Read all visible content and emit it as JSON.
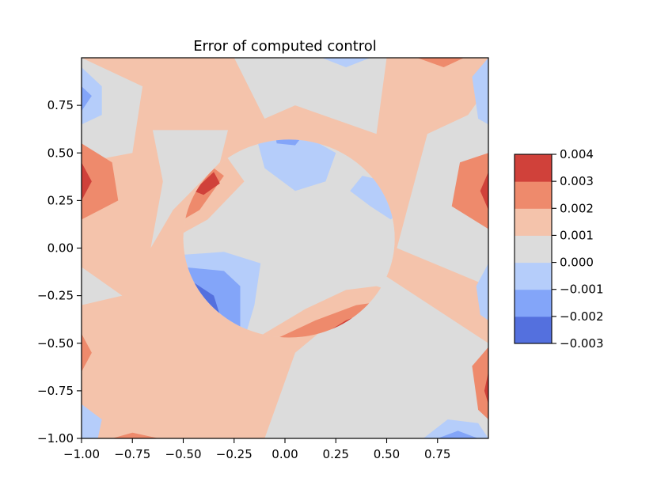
{
  "chart_data": {
    "type": "heatmap",
    "title": "Error of computed control",
    "xlabel": "",
    "ylabel": "",
    "xlim": [
      -1.0,
      1.0
    ],
    "ylim": [
      -1.0,
      1.0
    ],
    "x_ticks": [
      {
        "value": -1.0,
        "label": "−1.00"
      },
      {
        "value": -0.75,
        "label": "−0.75"
      },
      {
        "value": -0.5,
        "label": "−0.50"
      },
      {
        "value": -0.25,
        "label": "−0.25"
      },
      {
        "value": 0.0,
        "label": "0.00"
      },
      {
        "value": 0.25,
        "label": "0.25"
      },
      {
        "value": 0.5,
        "label": "0.50"
      },
      {
        "value": 0.75,
        "label": "0.75"
      }
    ],
    "y_ticks": [
      {
        "value": -1.0,
        "label": "−1.00"
      },
      {
        "value": -0.75,
        "label": "−0.75"
      },
      {
        "value": -0.5,
        "label": "−0.50"
      },
      {
        "value": -0.25,
        "label": "−0.25"
      },
      {
        "value": 0.0,
        "label": "0.00"
      },
      {
        "value": 0.25,
        "label": "0.25"
      },
      {
        "value": 0.5,
        "label": "0.50"
      },
      {
        "value": 0.75,
        "label": "0.75"
      }
    ],
    "colorbar": {
      "levels": [
        -0.003,
        -0.002,
        -0.001,
        0.0,
        0.001,
        0.002,
        0.003,
        0.004
      ],
      "tick_labels": [
        "−0.003",
        "−0.002",
        "−0.001",
        "0.000",
        "0.001",
        "0.002",
        "0.003",
        "0.004"
      ],
      "colors": [
        "#5470de",
        "#83a5f9",
        "#b5cdfa",
        "#dcdcdc",
        "#f4c3ab",
        "#ee8a6c",
        "#d0413a"
      ]
    },
    "hole": {
      "shape": "circle",
      "center": [
        0.02,
        0.05
      ],
      "radius": 0.52
    },
    "regions": [
      {
        "band": 0.0015,
        "x_range": [
          -1.0,
          1.0
        ],
        "y_range": [
          -1.0,
          1.0
        ],
        "note": "background"
      },
      {
        "band": 0.0005,
        "polygon": [
          [
            -0.65,
            0.62
          ],
          [
            -0.28,
            0.62
          ],
          [
            -0.32,
            0.45
          ],
          [
            -0.55,
            0.2
          ],
          [
            -0.66,
            0.0
          ],
          [
            -0.6,
            0.35
          ]
        ]
      },
      {
        "band": 0.0005,
        "polygon": [
          [
            -0.25,
            1.0
          ],
          [
            0.5,
            1.0
          ],
          [
            0.45,
            0.6
          ],
          [
            0.05,
            0.75
          ],
          [
            -0.1,
            0.68
          ]
        ]
      },
      {
        "band": 0.0005,
        "polygon": [
          [
            0.55,
            0.0
          ],
          [
            1.0,
            -0.2
          ],
          [
            1.0,
            0.85
          ],
          [
            0.9,
            0.7
          ],
          [
            0.7,
            0.6
          ],
          [
            0.6,
            0.2
          ]
        ]
      },
      {
        "band": 0.0005,
        "polygon": [
          [
            0.05,
            -0.55
          ],
          [
            0.5,
            -0.15
          ],
          [
            1.0,
            -0.5
          ],
          [
            1.0,
            -1.0
          ],
          [
            -0.1,
            -1.0
          ]
        ]
      },
      {
        "band": 0.0005,
        "polygon": [
          [
            -1.0,
            -0.1
          ],
          [
            -0.8,
            -0.25
          ],
          [
            -1.0,
            -0.3
          ]
        ]
      },
      {
        "band": 0.0005,
        "polygon": [
          [
            -1.0,
            1.0
          ],
          [
            -0.7,
            0.85
          ],
          [
            -0.75,
            0.5
          ],
          [
            -1.0,
            0.45
          ]
        ]
      },
      {
        "band": 0.0025,
        "polygon": [
          [
            -1.0,
            0.55
          ],
          [
            -0.85,
            0.45
          ],
          [
            -0.82,
            0.25
          ],
          [
            -1.0,
            0.15
          ]
        ]
      },
      {
        "band": 0.0035,
        "polygon": [
          [
            -1.0,
            0.45
          ],
          [
            -0.95,
            0.35
          ],
          [
            -1.0,
            0.25
          ]
        ]
      },
      {
        "band": 0.0025,
        "polygon": [
          [
            1.0,
            0.5
          ],
          [
            0.86,
            0.45
          ],
          [
            0.82,
            0.22
          ],
          [
            1.0,
            0.1
          ]
        ]
      },
      {
        "band": 0.0035,
        "polygon": [
          [
            1.0,
            0.4
          ],
          [
            0.96,
            0.3
          ],
          [
            1.0,
            0.2
          ]
        ]
      },
      {
        "band": 0.0025,
        "polygon": [
          [
            1.0,
            -0.52
          ],
          [
            0.92,
            -0.62
          ],
          [
            0.95,
            -0.85
          ],
          [
            1.0,
            -0.9
          ]
        ]
      },
      {
        "band": 0.0035,
        "polygon": [
          [
            1.0,
            -0.65
          ],
          [
            0.98,
            -0.75
          ],
          [
            1.0,
            -0.82
          ]
        ]
      },
      {
        "band": 0.0025,
        "polygon": [
          [
            -1.0,
            -0.45
          ],
          [
            -0.95,
            -0.55
          ],
          [
            -1.0,
            -0.65
          ]
        ]
      },
      {
        "band": 0.0025,
        "polygon": [
          [
            0.65,
            1.0
          ],
          [
            0.78,
            0.95
          ],
          [
            0.88,
            1.0
          ]
        ]
      },
      {
        "band": -0.0005,
        "polygon": [
          [
            -1.0,
            0.95
          ],
          [
            -0.9,
            0.85
          ],
          [
            -0.9,
            0.7
          ],
          [
            -1.0,
            0.65
          ]
        ]
      },
      {
        "band": -0.0015,
        "polygon": [
          [
            -1.0,
            0.85
          ],
          [
            -0.95,
            0.8
          ],
          [
            -1.0,
            0.72
          ]
        ]
      },
      {
        "band": -0.0005,
        "polygon": [
          [
            1.0,
            1.0
          ],
          [
            0.92,
            0.9
          ],
          [
            0.95,
            0.68
          ],
          [
            1.0,
            0.65
          ]
        ]
      },
      {
        "band": -0.0005,
        "polygon": [
          [
            1.0,
            -0.08
          ],
          [
            0.94,
            -0.2
          ],
          [
            0.96,
            -0.35
          ],
          [
            1.0,
            -0.38
          ]
        ]
      },
      {
        "band": -0.0005,
        "polygon": [
          [
            0.68,
            -1.0
          ],
          [
            0.8,
            -0.9
          ],
          [
            0.95,
            -0.92
          ],
          [
            1.0,
            -1.0
          ]
        ]
      },
      {
        "band": -0.0015,
        "polygon": [
          [
            0.75,
            -1.0
          ],
          [
            0.85,
            -0.96
          ],
          [
            0.95,
            -1.0
          ]
        ]
      },
      {
        "band": -0.0005,
        "polygon": [
          [
            -1.0,
            -0.82
          ],
          [
            -0.9,
            -0.9
          ],
          [
            -0.92,
            -1.0
          ],
          [
            -1.0,
            -1.0
          ]
        ]
      },
      {
        "band": -0.0005,
        "polygon": [
          [
            0.18,
            1.0
          ],
          [
            0.3,
            0.95
          ],
          [
            0.42,
            1.0
          ]
        ]
      },
      {
        "band": 0.0025,
        "polygon": [
          [
            -0.85,
            -1.0
          ],
          [
            -0.75,
            -0.97
          ],
          [
            -0.62,
            -1.0
          ]
        ]
      },
      {
        "band": 0.0015,
        "polygon": [
          [
            -0.72,
            0.15
          ],
          [
            -0.52,
            0.45
          ],
          [
            -0.42,
            0.52
          ],
          [
            -0.3,
            0.5
          ],
          [
            -0.2,
            0.35
          ],
          [
            -0.38,
            0.15
          ],
          [
            -0.55,
            0.05
          ],
          [
            -0.72,
            -0.05
          ]
        ],
        "clip": "hole"
      },
      {
        "band": 0.0025,
        "polygon": [
          [
            -0.62,
            0.15
          ],
          [
            -0.45,
            0.35
          ],
          [
            -0.35,
            0.42
          ],
          [
            -0.3,
            0.38
          ],
          [
            -0.42,
            0.2
          ],
          [
            -0.58,
            0.1
          ]
        ],
        "clip": "hole"
      },
      {
        "band": 0.0035,
        "polygon": [
          [
            -0.45,
            0.3
          ],
          [
            -0.35,
            0.4
          ],
          [
            -0.32,
            0.34
          ],
          [
            -0.4,
            0.28
          ]
        ],
        "clip": "hole"
      },
      {
        "band": -0.0005,
        "polygon": [
          [
            -0.7,
            -0.05
          ],
          [
            -0.3,
            -0.02
          ],
          [
            -0.12,
            -0.08
          ],
          [
            -0.15,
            -0.3
          ],
          [
            -0.2,
            -0.48
          ],
          [
            -0.3,
            -0.52
          ],
          [
            -0.6,
            -0.4
          ],
          [
            -0.7,
            -0.2
          ]
        ],
        "clip": "hole"
      },
      {
        "band": -0.0015,
        "polygon": [
          [
            -0.7,
            -0.08
          ],
          [
            -0.3,
            -0.12
          ],
          [
            -0.22,
            -0.2
          ],
          [
            -0.22,
            -0.45
          ],
          [
            -0.3,
            -0.46
          ],
          [
            -0.45,
            -0.35
          ],
          [
            -0.7,
            -0.25
          ]
        ],
        "clip": "hole"
      },
      {
        "band": -0.0025,
        "polygon": [
          [
            -0.7,
            -0.15
          ],
          [
            -0.45,
            -0.18
          ],
          [
            -0.35,
            -0.25
          ],
          [
            -0.3,
            -0.42
          ],
          [
            -0.45,
            -0.33
          ],
          [
            -0.7,
            -0.3
          ]
        ],
        "clip": "hole"
      },
      {
        "band": 0.0015,
        "polygon": [
          [
            -0.15,
            -0.48
          ],
          [
            0.1,
            -0.32
          ],
          [
            0.3,
            -0.22
          ],
          [
            0.45,
            -0.2
          ],
          [
            0.6,
            -0.25
          ],
          [
            0.5,
            -0.4
          ],
          [
            0.3,
            -0.48
          ],
          [
            0.0,
            -0.55
          ],
          [
            -0.15,
            -0.55
          ]
        ],
        "clip": "hole"
      },
      {
        "band": 0.0025,
        "polygon": [
          [
            -0.05,
            -0.48
          ],
          [
            0.15,
            -0.38
          ],
          [
            0.35,
            -0.3
          ],
          [
            0.48,
            -0.28
          ],
          [
            0.55,
            -0.32
          ],
          [
            0.42,
            -0.42
          ],
          [
            0.2,
            -0.5
          ],
          [
            0.0,
            -0.52
          ]
        ],
        "clip": "hole"
      },
      {
        "band": 0.0035,
        "polygon": [
          [
            0.15,
            -0.48
          ],
          [
            0.3,
            -0.38
          ],
          [
            0.42,
            -0.33
          ],
          [
            0.5,
            -0.35
          ],
          [
            0.4,
            -0.42
          ],
          [
            0.25,
            -0.5
          ]
        ],
        "clip": "hole"
      },
      {
        "band": -0.0005,
        "polygon": [
          [
            -0.15,
            0.62
          ],
          [
            0.05,
            0.62
          ],
          [
            0.25,
            0.5
          ],
          [
            0.2,
            0.35
          ],
          [
            0.05,
            0.3
          ],
          [
            -0.1,
            0.42
          ]
        ],
        "clip": "hole"
      },
      {
        "band": -0.0015,
        "polygon": [
          [
            -0.05,
            0.6
          ],
          [
            0.08,
            0.58
          ],
          [
            0.05,
            0.54
          ],
          [
            -0.04,
            0.55
          ]
        ],
        "clip": "hole"
      },
      {
        "band": -0.0005,
        "polygon": [
          [
            0.32,
            0.3
          ],
          [
            0.42,
            0.22
          ],
          [
            0.52,
            0.15
          ],
          [
            0.6,
            0.22
          ],
          [
            0.5,
            0.35
          ],
          [
            0.38,
            0.38
          ]
        ],
        "clip": "hole"
      }
    ]
  }
}
